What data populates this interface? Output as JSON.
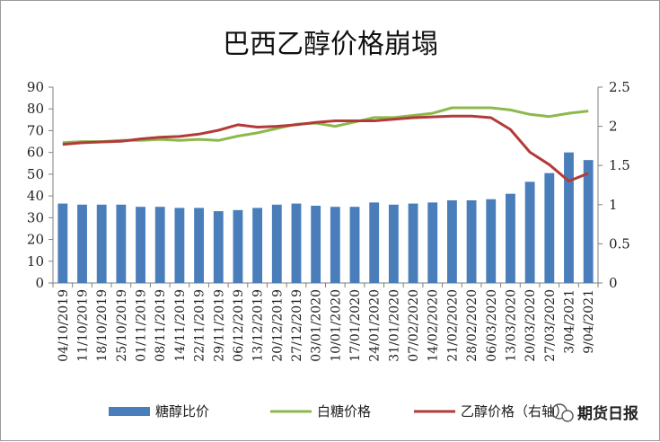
{
  "chart_data": {
    "type": "bar",
    "title": "巴西乙醇价格崩塌",
    "categories": [
      "04/10/2019",
      "11/10/2019",
      "18/10/2019",
      "25/10/2019",
      "01/11/2019",
      "08/11/2019",
      "14/11/2019",
      "22/11/2019",
      "29/11/2019",
      "06/12/2019",
      "13/12/2019",
      "20/12/2019",
      "27/12/2019",
      "03/01/2020",
      "10/01/2020",
      "17/01/2020",
      "24/01/2020",
      "31/01/2020",
      "07/02/2020",
      "14/02/2020",
      "21/02/2020",
      "28/02/2020",
      "06/03/2020",
      "13/03/2020",
      "20/03/2020",
      "27/03/2020",
      "3/04/2021",
      "9/04/2021"
    ],
    "y_left": {
      "ticks": [
        0,
        10,
        20,
        30,
        40,
        50,
        60,
        70,
        80,
        90
      ],
      "ylim": [
        0,
        90
      ]
    },
    "y_right": {
      "ticks": [
        "0",
        "0.5",
        "1",
        "1.5",
        "2",
        "2.5"
      ],
      "ylim": [
        0,
        2.5
      ]
    },
    "series": [
      {
        "name": "糖醇比价",
        "kind": "bar",
        "axis": "left",
        "color": "#4a7ebb",
        "values": [
          36.5,
          36,
          36,
          36,
          35,
          35,
          34.5,
          34.5,
          33,
          33.5,
          34.5,
          36,
          36.5,
          35.5,
          35,
          35,
          37,
          36,
          36.5,
          37,
          38,
          38,
          38.5,
          41,
          46.5,
          50.5,
          60,
          56.5
        ]
      },
      {
        "name": "白糖价格",
        "kind": "line",
        "axis": "left",
        "color": "#8cb94b",
        "values": [
          64.5,
          65,
          65,
          65.5,
          65.5,
          66,
          65.5,
          66,
          65.5,
          67.5,
          69,
          71,
          73,
          73.5,
          72,
          74,
          76,
          76,
          77,
          78,
          80.5,
          80.5,
          80.5,
          79.5,
          77.5,
          76.5,
          78,
          79
        ]
      },
      {
        "name": "乙醇价格（右轴）",
        "kind": "line",
        "axis": "right",
        "color": "#b23b3a",
        "values": [
          1.77,
          1.79,
          1.8,
          1.81,
          1.84,
          1.86,
          1.87,
          1.9,
          1.95,
          2.02,
          1.99,
          2,
          2.02,
          2.05,
          2.07,
          2.07,
          2.07,
          2.09,
          2.11,
          2.12,
          2.13,
          2.13,
          2.11,
          1.96,
          1.67,
          1.51,
          1.3,
          1.4
        ]
      }
    ],
    "legend_position": "bottom",
    "grid": false
  },
  "watermark": {
    "text": "期货日报",
    "icon": "wechat-icon"
  }
}
